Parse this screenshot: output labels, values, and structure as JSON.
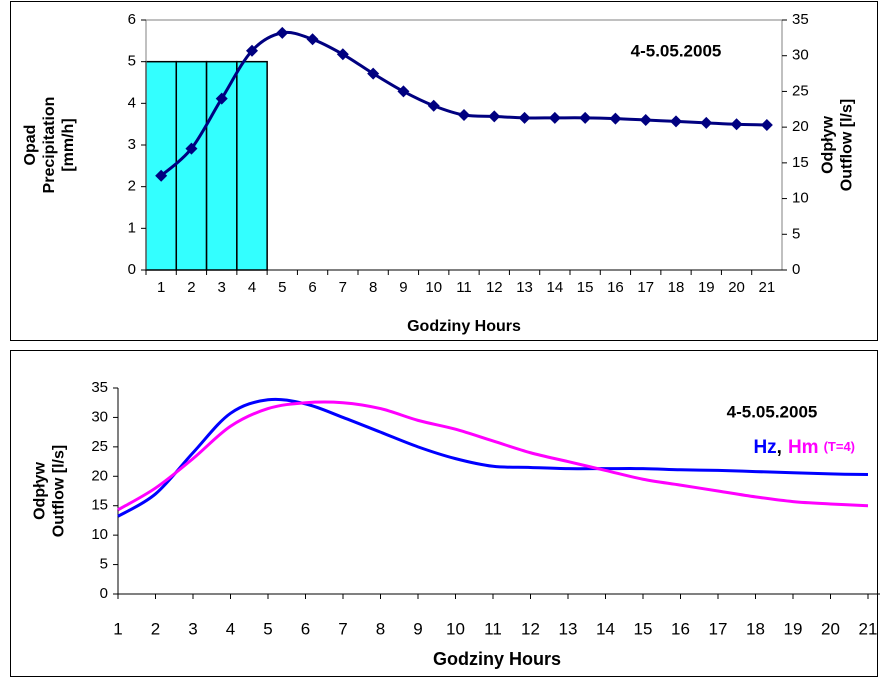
{
  "chart_data": [
    {
      "type": "bar_line",
      "title": "4-5.05.2005",
      "x_label": "Godziny Hours",
      "y_label": [
        "Opad",
        "Precipitation",
        "[mm/h]"
      ],
      "y2_label": [
        "Odpływ",
        "Outflow [l/s]"
      ],
      "categories": [
        "1",
        "2",
        "3",
        "4",
        "5",
        "6",
        "7",
        "8",
        "9",
        "10",
        "11",
        "12",
        "13",
        "14",
        "15",
        "16",
        "17",
        "18",
        "19",
        "20",
        "21"
      ],
      "series": [
        {
          "type": "bar",
          "color": "#33ffff",
          "values": [
            5,
            5,
            5,
            5,
            null,
            null,
            null,
            null,
            null,
            null,
            null,
            null,
            null,
            null,
            null,
            null,
            null,
            null,
            null,
            null,
            null
          ]
        },
        {
          "type": "line",
          "axis": "y2",
          "color": "#000080",
          "values": [
            13.2,
            17,
            24,
            30.7,
            33.2,
            32.3,
            30.2,
            27.5,
            25,
            23,
            21.7,
            21.5,
            21.3,
            21.3,
            21.3,
            21.2,
            21,
            20.8,
            20.6,
            20.4,
            20.3
          ]
        }
      ],
      "ylim": [
        0,
        6
      ],
      "yticks": [
        0,
        1,
        2,
        3,
        4,
        5,
        6
      ],
      "y2lim": [
        0,
        35
      ],
      "y2ticks": [
        0,
        5,
        10,
        15,
        20,
        25,
        30,
        35
      ],
      "grid": false
    },
    {
      "type": "line",
      "title": "4-5.05.2005",
      "x_label": "Godziny Hours",
      "y_label": [
        "Odpływ",
        "Outflow [l/s]"
      ],
      "x": [
        1,
        2,
        3,
        4,
        5,
        6,
        7,
        8,
        9,
        10,
        11,
        12,
        13,
        14,
        15,
        16,
        17,
        18,
        19,
        20,
        21
      ],
      "series": [
        {
          "name": "Hz",
          "color": "#0000ff",
          "values": [
            13.2,
            17,
            24,
            30.7,
            33,
            32.3,
            30,
            27.5,
            25,
            23,
            21.7,
            21.5,
            21.3,
            21.3,
            21.3,
            21.1,
            21,
            20.8,
            20.6,
            20.4,
            20.3
          ]
        },
        {
          "name": "Hm",
          "color": "#ff00ff",
          "values": [
            14.3,
            18,
            23,
            28.5,
            31.5,
            32.5,
            32.5,
            31.5,
            29.5,
            28,
            26,
            24,
            22.5,
            21,
            19.5,
            18.5,
            17.5,
            16.5,
            15.7,
            15.3,
            15
          ]
        }
      ],
      "legend_separator": ",",
      "legend_note": "(T=4)",
      "xlim": [
        1,
        21
      ],
      "xticks": [
        1,
        2,
        3,
        4,
        5,
        6,
        7,
        8,
        9,
        10,
        11,
        12,
        13,
        14,
        15,
        16,
        17,
        18,
        19,
        20,
        21
      ],
      "ylim": [
        0,
        35
      ],
      "yticks": [
        0,
        5,
        10,
        15,
        20,
        25,
        30,
        35
      ],
      "grid": false
    }
  ]
}
